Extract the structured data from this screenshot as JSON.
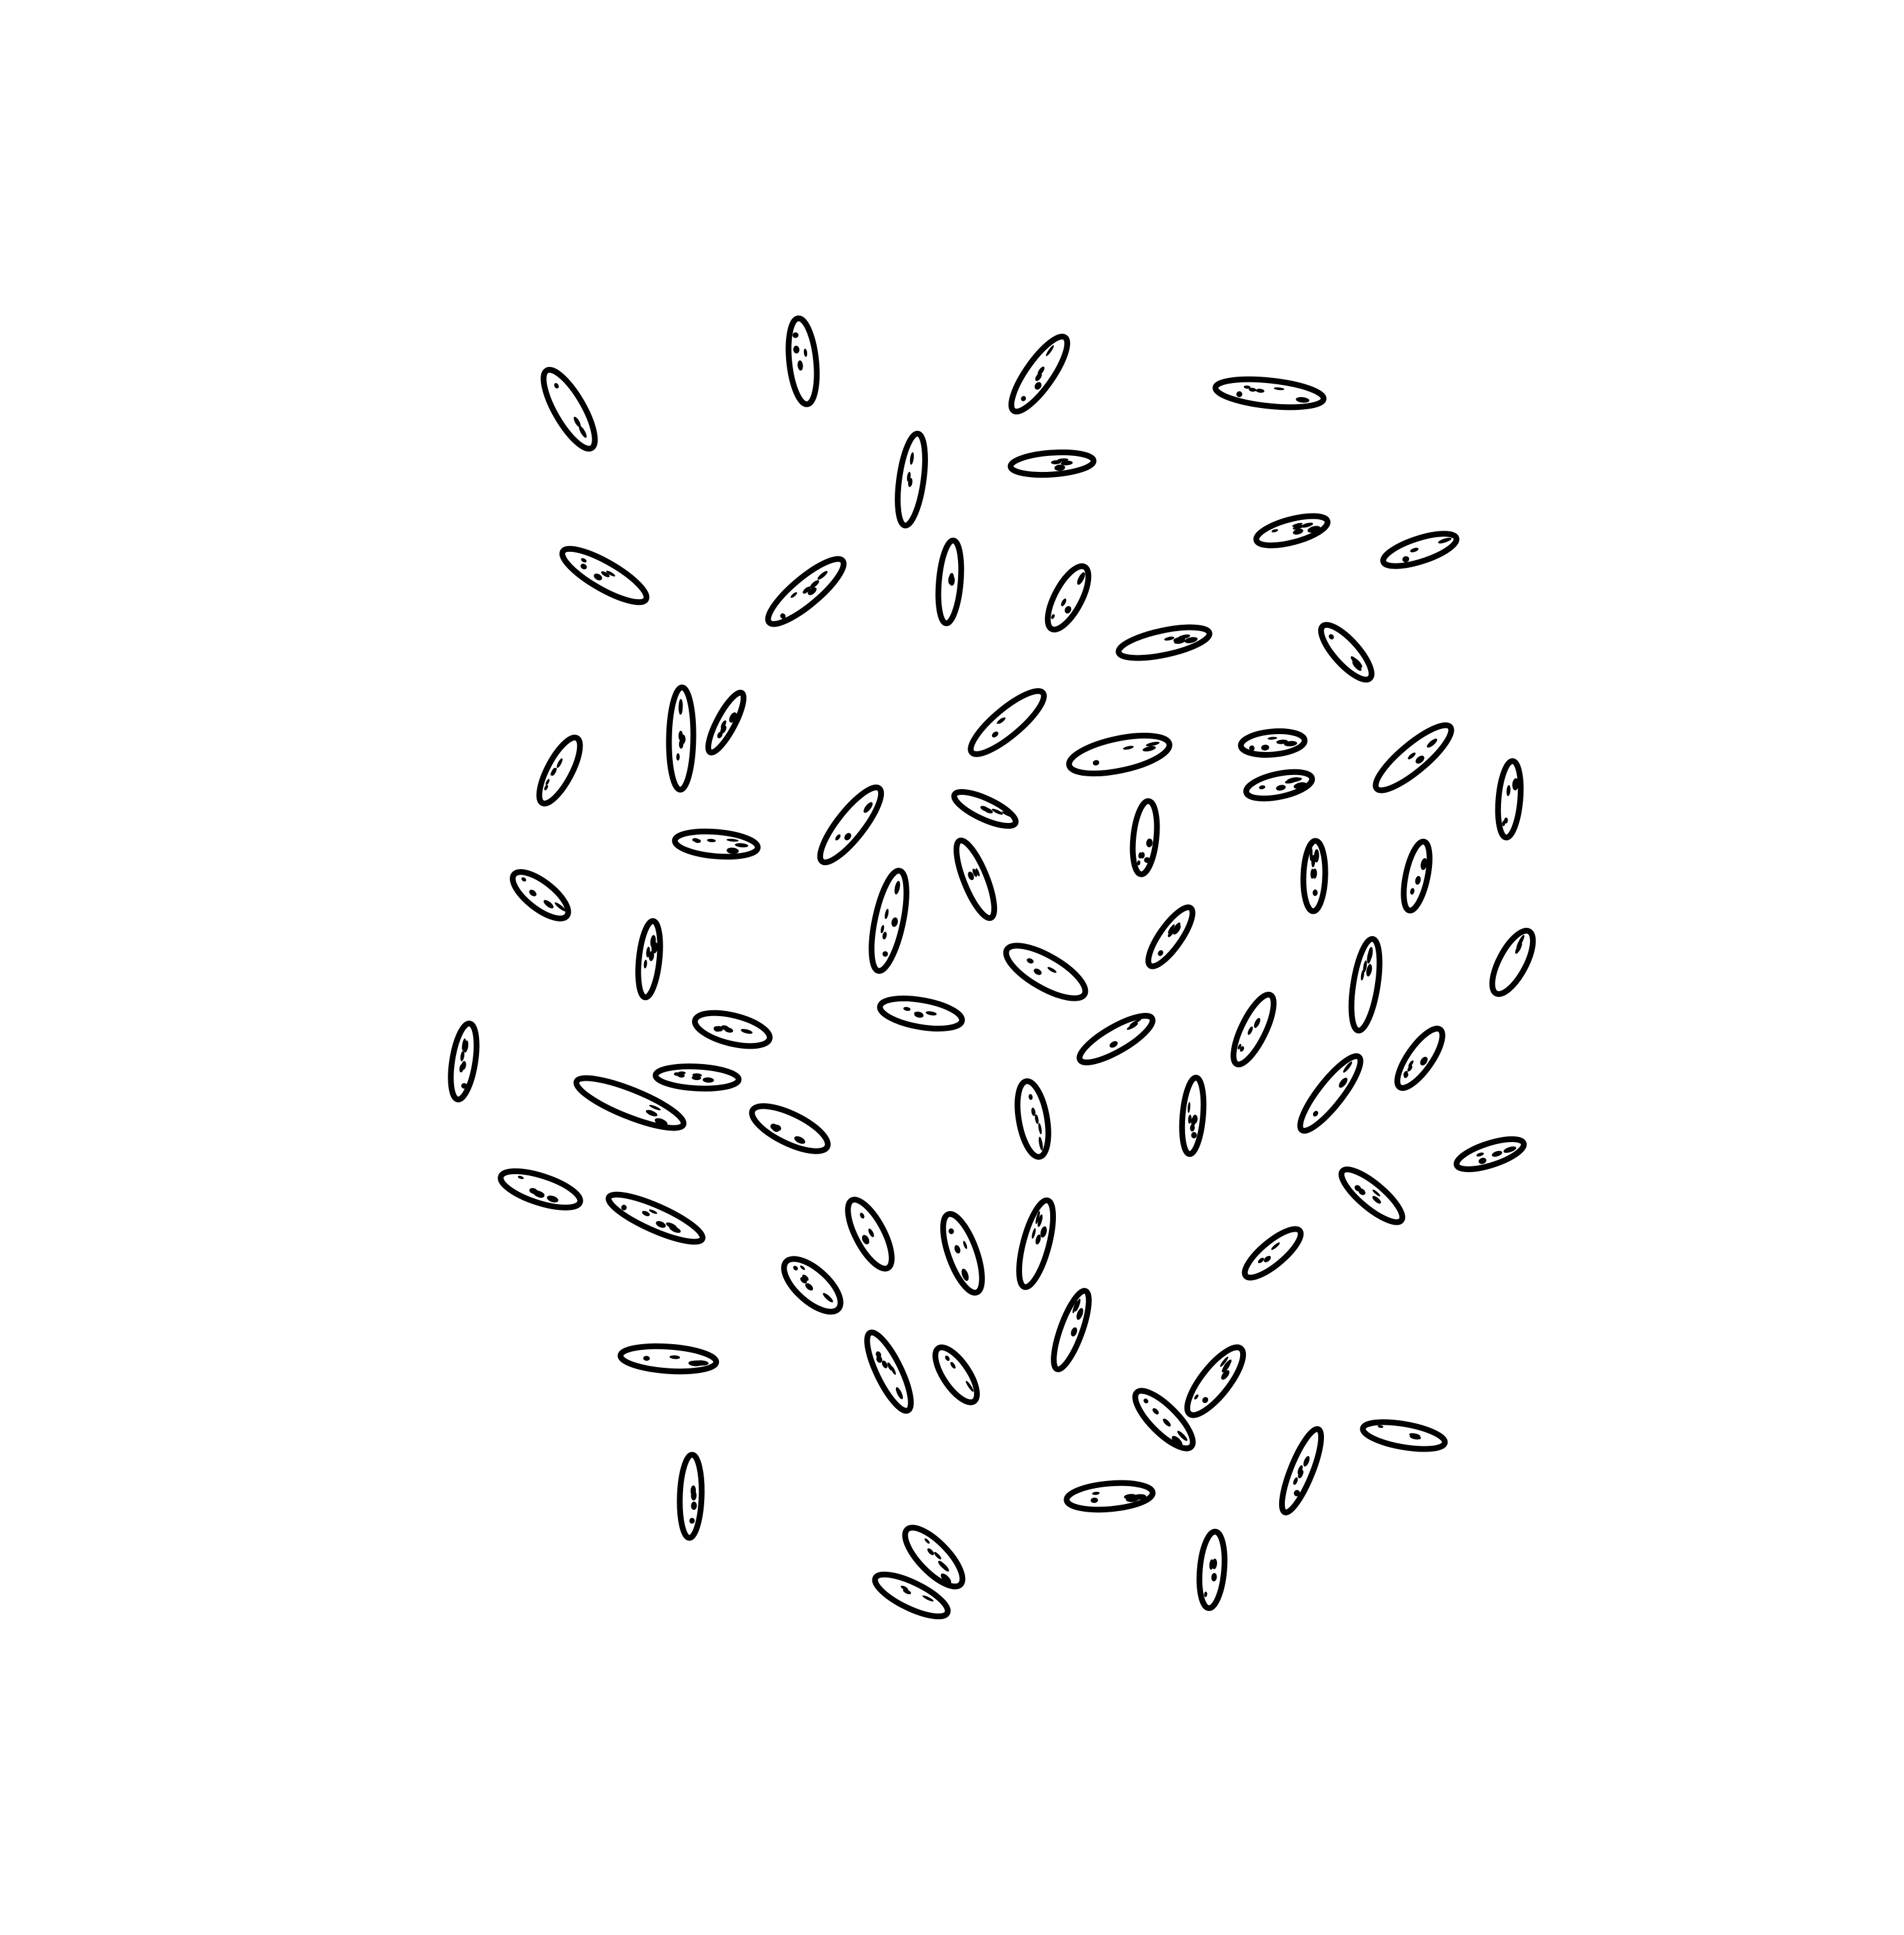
{
  "image": {
    "subject": "rice-grains",
    "background_color": "#ffffff",
    "ink_color": "#000000"
  }
}
